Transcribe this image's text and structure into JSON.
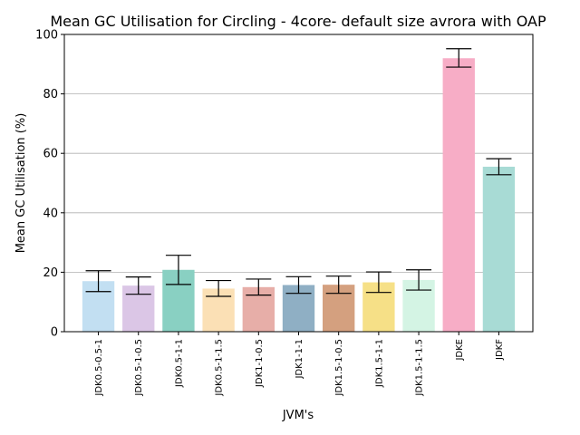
{
  "chart_data": {
    "type": "bar",
    "title": "Mean GC Utilisation for Circling - 4core- default size avrora with OAP",
    "xlabel": "JVM's",
    "ylabel": "Mean GC Utilisation (%)",
    "ylim": [
      0,
      100
    ],
    "yticks": [
      0,
      20,
      40,
      60,
      80,
      100
    ],
    "grid": "y",
    "categories": [
      "JDK0.5-0.5-1",
      "JDK0.5-1-0.5",
      "JDK0.5-1-1",
      "JDK0.5-1-1.5",
      "JDK1-1-0.5",
      "JDK1-1-1",
      "JDK1.5-1-0.5",
      "JDK1.5-1-1",
      "JDK1.5-1-1.5",
      "JDKE",
      "JDKF"
    ],
    "values": [
      17.0,
      15.5,
      20.8,
      14.5,
      15.0,
      15.7,
      15.8,
      16.6,
      17.4,
      92.0,
      55.5
    ],
    "error_low": [
      13.5,
      12.6,
      15.9,
      11.9,
      12.3,
      12.9,
      12.9,
      13.2,
      14.0,
      89.0,
      52.8
    ],
    "error_high": [
      20.5,
      18.4,
      25.7,
      17.2,
      17.7,
      18.5,
      18.7,
      20.1,
      20.8,
      95.2,
      58.2
    ],
    "colors": [
      "#c2dff2",
      "#dbc6e6",
      "#89d0c2",
      "#fbe0b5",
      "#e7aea8",
      "#8fafc4",
      "#d4a07f",
      "#f6e087",
      "#d4f4e4",
      "#f7adc6",
      "#a8dbd5"
    ]
  }
}
